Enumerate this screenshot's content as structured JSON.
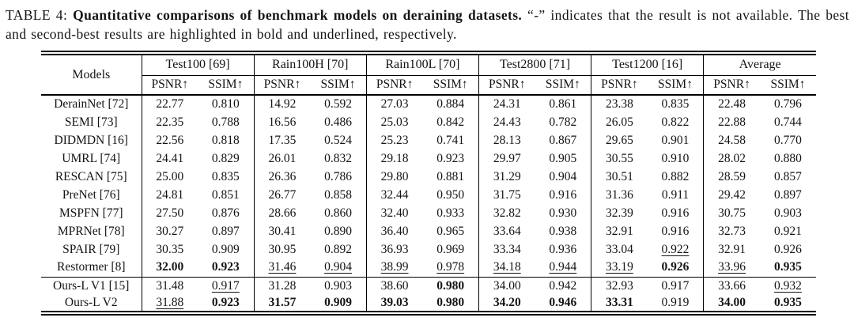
{
  "caption": {
    "prefix": "TABLE 4: ",
    "title": "Quantitative comparisons of benchmark models on deraining datasets.",
    "suffix": " “-” indicates that the result is not available. The best and second-best results are highlighted in bold and underlined, respectively."
  },
  "table": {
    "models_header": "Models",
    "groups": [
      {
        "label": "Test100 [69]"
      },
      {
        "label": "Rain100H [70]"
      },
      {
        "label": "Rain100L [70]"
      },
      {
        "label": "Test2800 [71]"
      },
      {
        "label": "Test1200 [16]"
      },
      {
        "label": "Average"
      }
    ],
    "metric_headers": [
      "PSNR↑",
      "SSIM↑"
    ],
    "style_legend": {
      "b": "best (bold)",
      "u": "second-best (underlined)"
    },
    "rows": [
      {
        "model": "DerainNet [72]",
        "cells": [
          [
            "22.77",
            ""
          ],
          [
            "0.810",
            ""
          ],
          [
            "14.92",
            ""
          ],
          [
            "0.592",
            ""
          ],
          [
            "27.03",
            ""
          ],
          [
            "0.884",
            ""
          ],
          [
            "24.31",
            ""
          ],
          [
            "0.861",
            ""
          ],
          [
            "23.38",
            ""
          ],
          [
            "0.835",
            ""
          ],
          [
            "22.48",
            ""
          ],
          [
            "0.796",
            ""
          ]
        ]
      },
      {
        "model": "SEMI [73]",
        "cells": [
          [
            "22.35",
            ""
          ],
          [
            "0.788",
            ""
          ],
          [
            "16.56",
            ""
          ],
          [
            "0.486",
            ""
          ],
          [
            "25.03",
            ""
          ],
          [
            "0.842",
            ""
          ],
          [
            "24.43",
            ""
          ],
          [
            "0.782",
            ""
          ],
          [
            "26.05",
            ""
          ],
          [
            "0.822",
            ""
          ],
          [
            "22.88",
            ""
          ],
          [
            "0.744",
            ""
          ]
        ]
      },
      {
        "model": "DIDMDN [16]",
        "cells": [
          [
            "22.56",
            ""
          ],
          [
            "0.818",
            ""
          ],
          [
            "17.35",
            ""
          ],
          [
            "0.524",
            ""
          ],
          [
            "25.23",
            ""
          ],
          [
            "0.741",
            ""
          ],
          [
            "28.13",
            ""
          ],
          [
            "0.867",
            ""
          ],
          [
            "29.65",
            ""
          ],
          [
            "0.901",
            ""
          ],
          [
            "24.58",
            ""
          ],
          [
            "0.770",
            ""
          ]
        ]
      },
      {
        "model": "UMRL [74]",
        "cells": [
          [
            "24.41",
            ""
          ],
          [
            "0.829",
            ""
          ],
          [
            "26.01",
            ""
          ],
          [
            "0.832",
            ""
          ],
          [
            "29.18",
            ""
          ],
          [
            "0.923",
            ""
          ],
          [
            "29.97",
            ""
          ],
          [
            "0.905",
            ""
          ],
          [
            "30.55",
            ""
          ],
          [
            "0.910",
            ""
          ],
          [
            "28.02",
            ""
          ],
          [
            "0.880",
            ""
          ]
        ]
      },
      {
        "model": "RESCAN [75]",
        "cells": [
          [
            "25.00",
            ""
          ],
          [
            "0.835",
            ""
          ],
          [
            "26.36",
            ""
          ],
          [
            "0.786",
            ""
          ],
          [
            "29.80",
            ""
          ],
          [
            "0.881",
            ""
          ],
          [
            "31.29",
            ""
          ],
          [
            "0.904",
            ""
          ],
          [
            "30.51",
            ""
          ],
          [
            "0.882",
            ""
          ],
          [
            "28.59",
            ""
          ],
          [
            "0.857",
            ""
          ]
        ]
      },
      {
        "model": "PreNet [76]",
        "cells": [
          [
            "24.81",
            ""
          ],
          [
            "0.851",
            ""
          ],
          [
            "26.77",
            ""
          ],
          [
            "0.858",
            ""
          ],
          [
            "32.44",
            ""
          ],
          [
            "0.950",
            ""
          ],
          [
            "31.75",
            ""
          ],
          [
            "0.916",
            ""
          ],
          [
            "31.36",
            ""
          ],
          [
            "0.911",
            ""
          ],
          [
            "29.42",
            ""
          ],
          [
            "0.897",
            ""
          ]
        ]
      },
      {
        "model": "MSPFN [77]",
        "cells": [
          [
            "27.50",
            ""
          ],
          [
            "0.876",
            ""
          ],
          [
            "28.66",
            ""
          ],
          [
            "0.860",
            ""
          ],
          [
            "32.40",
            ""
          ],
          [
            "0.933",
            ""
          ],
          [
            "32.82",
            ""
          ],
          [
            "0.930",
            ""
          ],
          [
            "32.39",
            ""
          ],
          [
            "0.916",
            ""
          ],
          [
            "30.75",
            ""
          ],
          [
            "0.903",
            ""
          ]
        ]
      },
      {
        "model": "MPRNet [78]",
        "cells": [
          [
            "30.27",
            ""
          ],
          [
            "0.897",
            ""
          ],
          [
            "30.41",
            ""
          ],
          [
            "0.890",
            ""
          ],
          [
            "36.40",
            ""
          ],
          [
            "0.965",
            ""
          ],
          [
            "33.64",
            ""
          ],
          [
            "0.938",
            ""
          ],
          [
            "32.91",
            ""
          ],
          [
            "0.916",
            ""
          ],
          [
            "32.73",
            ""
          ],
          [
            "0.921",
            ""
          ]
        ]
      },
      {
        "model": "SPAIR [79]",
        "cells": [
          [
            "30.35",
            ""
          ],
          [
            "0.909",
            ""
          ],
          [
            "30.95",
            ""
          ],
          [
            "0.892",
            ""
          ],
          [
            "36.93",
            ""
          ],
          [
            "0.969",
            ""
          ],
          [
            "33.34",
            ""
          ],
          [
            "0.936",
            ""
          ],
          [
            "33.04",
            ""
          ],
          [
            "0.922",
            "u"
          ],
          [
            "32.91",
            ""
          ],
          [
            "0.926",
            ""
          ]
        ]
      },
      {
        "model": "Restormer [8]",
        "rule_below": true,
        "cells": [
          [
            "32.00",
            "b"
          ],
          [
            "0.923",
            "b"
          ],
          [
            "31.46",
            "u"
          ],
          [
            "0.904",
            "u"
          ],
          [
            "38.99",
            "u"
          ],
          [
            "0.978",
            "u"
          ],
          [
            "34.18",
            "u"
          ],
          [
            "0.944",
            "u"
          ],
          [
            "33.19",
            "u"
          ],
          [
            "0.926",
            "b"
          ],
          [
            "33.96",
            "u"
          ],
          [
            "0.935",
            "b"
          ]
        ]
      },
      {
        "model": "Ours-L V1 [15]",
        "cells": [
          [
            "31.48",
            ""
          ],
          [
            "0.917",
            "u"
          ],
          [
            "31.28",
            ""
          ],
          [
            "0.903",
            ""
          ],
          [
            "38.60",
            ""
          ],
          [
            "0.980",
            "b"
          ],
          [
            "34.00",
            ""
          ],
          [
            "0.942",
            ""
          ],
          [
            "32.93",
            ""
          ],
          [
            "0.917",
            ""
          ],
          [
            "33.66",
            ""
          ],
          [
            "0.932",
            "u"
          ]
        ]
      },
      {
        "model": "Ours-L V2",
        "cells": [
          [
            "31.88",
            "u"
          ],
          [
            "0.923",
            "b"
          ],
          [
            "31.57",
            "b"
          ],
          [
            "0.909",
            "b"
          ],
          [
            "39.03",
            "b"
          ],
          [
            "0.980",
            "b"
          ],
          [
            "34.20",
            "b"
          ],
          [
            "0.946",
            "b"
          ],
          [
            "33.31",
            "b"
          ],
          [
            "0.919",
            ""
          ],
          [
            "34.00",
            "b"
          ],
          [
            "0.935",
            "b"
          ]
        ]
      }
    ]
  }
}
